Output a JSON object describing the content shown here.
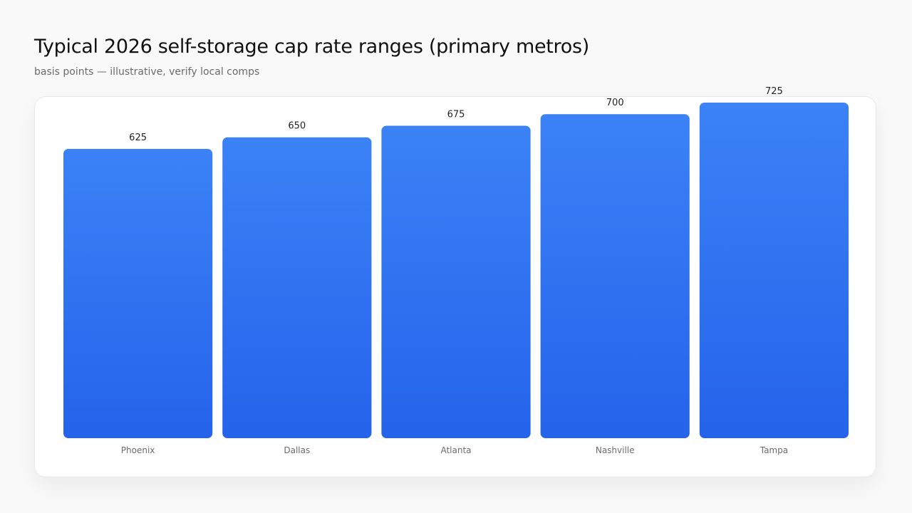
{
  "header": {
    "title": "Typical 2026 self-storage cap rate ranges (primary metros)",
    "subtitle": "basis points — illustrative, verify local comps"
  },
  "chart_data": {
    "type": "bar",
    "categories": [
      "Phoenix",
      "Dallas",
      "Atlanta",
      "Nashville",
      "Tampa"
    ],
    "values": [
      625,
      650,
      675,
      700,
      725
    ],
    "title": "Typical 2026 self-storage cap rate ranges (primary metros)",
    "subtitle": "basis points — illustrative, verify local comps",
    "xlabel": "",
    "ylabel": "",
    "ylim": [
      0,
      725
    ],
    "grid": false,
    "legend": "none",
    "data_labels": true,
    "colors": {
      "bar_top": "#3b82f6",
      "bar_bottom": "#2563eb"
    }
  }
}
